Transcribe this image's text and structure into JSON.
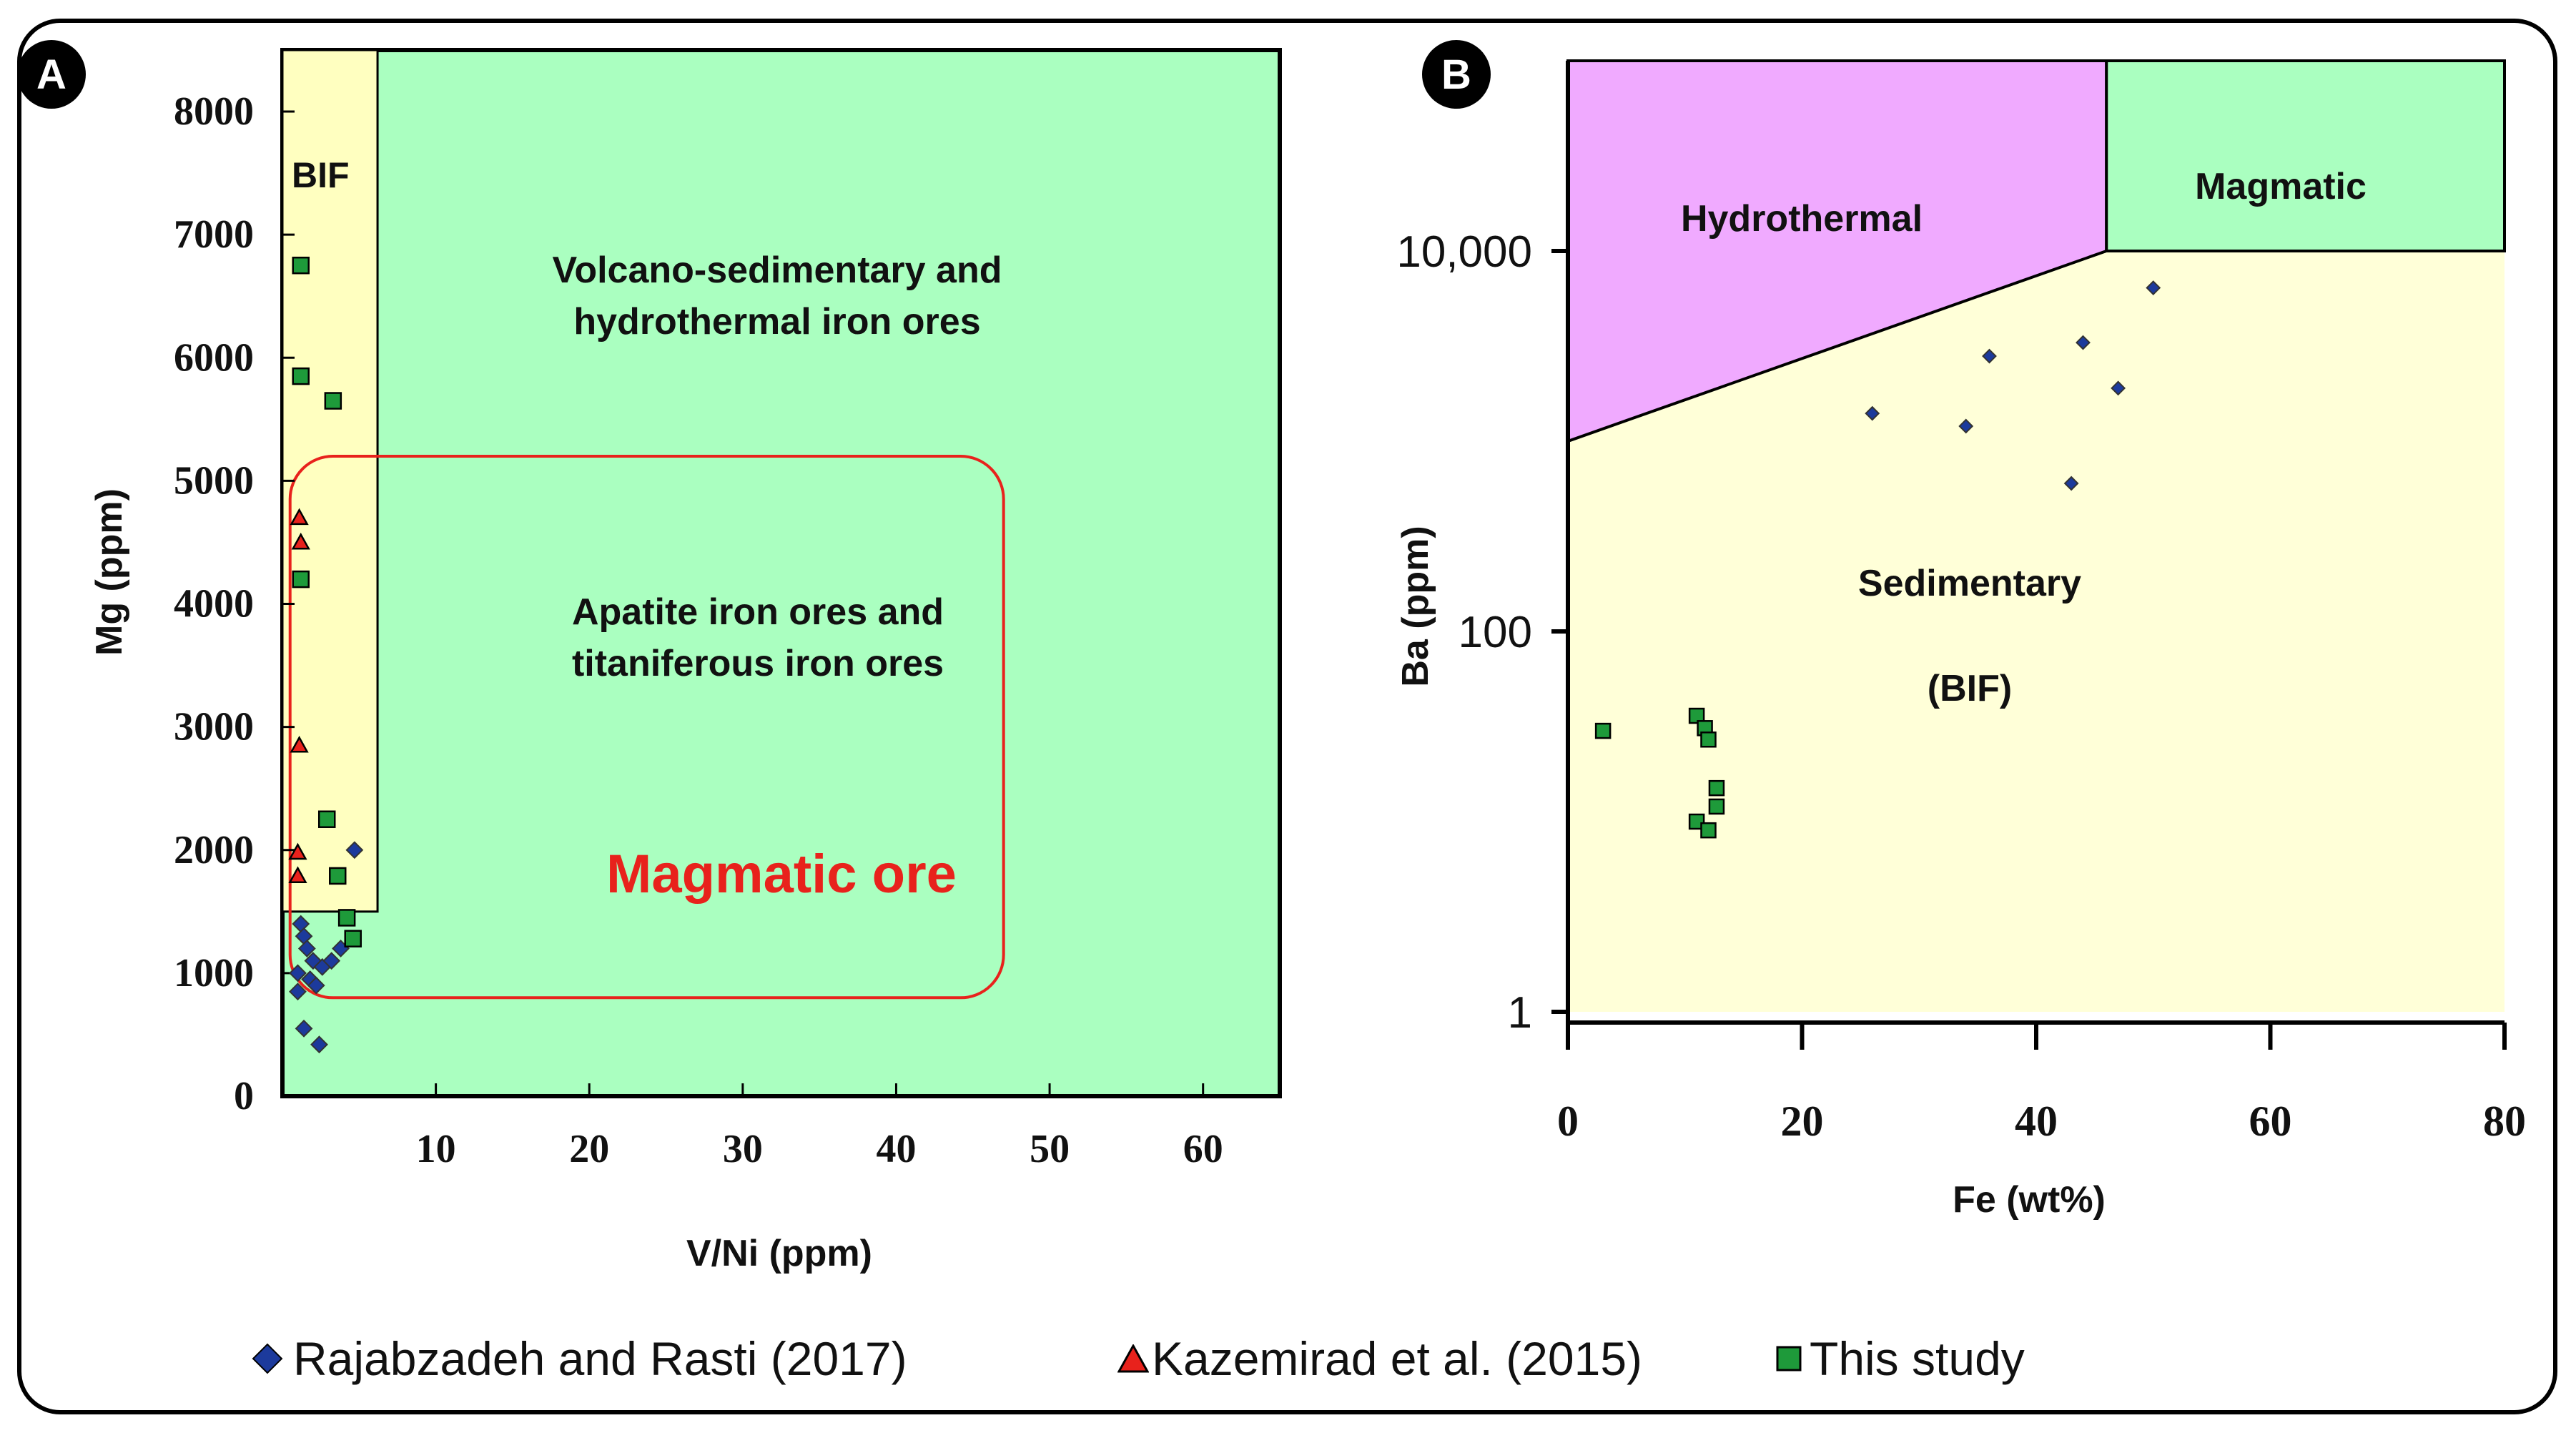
{
  "chart_data": [
    {
      "panel": "A",
      "type": "scatter",
      "xlabel": "V/Ni (ppm)",
      "ylabel": "Mg (ppm)",
      "xlim": [
        0,
        65
      ],
      "ylim": [
        0,
        8500
      ],
      "xticks": [
        10,
        20,
        30,
        40,
        50,
        60
      ],
      "yticks": [
        0,
        1000,
        2000,
        3000,
        4000,
        5000,
        6000,
        7000,
        8000
      ],
      "regions": [
        {
          "label": "BIF",
          "x": [
            0,
            6.2
          ],
          "y": [
            1500,
            8500
          ],
          "color": "#ffffc0"
        },
        {
          "label": "Volcano-sedimentary and hydrothermal iron ores",
          "color": "#aaffc0"
        },
        {
          "label": "Apatite iron ores and titaniferous iron ores",
          "x": [
            0.5,
            47
          ],
          "y": [
            800,
            5200
          ],
          "color": "#aaffc0"
        }
      ],
      "annotation": "Magmatic ore",
      "series": [
        {
          "name": "Rajabzadeh and Rasti (2017)",
          "marker": "diamond",
          "color": "#1c3a9c",
          "points": [
            [
              1.2,
              1400
            ],
            [
              1.4,
              1300
            ],
            [
              1.6,
              1200
            ],
            [
              2.0,
              1100
            ],
            [
              2.6,
              1050
            ],
            [
              3.2,
              1100
            ],
            [
              3.8,
              1200
            ],
            [
              1.0,
              1000
            ],
            [
              1.8,
              950
            ],
            [
              2.2,
              900
            ],
            [
              1.0,
              850
            ],
            [
              1.4,
              550
            ],
            [
              2.4,
              420
            ],
            [
              4.7,
              2000
            ]
          ]
        },
        {
          "name": "Kazemirad et al. (2015)",
          "marker": "triangle",
          "color": "#e8221c",
          "points": [
            [
              1.1,
              4700
            ],
            [
              1.2,
              4500
            ],
            [
              1.1,
              2850
            ],
            [
              1.0,
              1980
            ],
            [
              1.0,
              1790
            ]
          ]
        },
        {
          "name": "This study",
          "marker": "square",
          "color": "#1e9a3a",
          "points": [
            [
              1.2,
              6750
            ],
            [
              1.2,
              5850
            ],
            [
              3.3,
              5650
            ],
            [
              1.2,
              4200
            ],
            [
              2.9,
              2250
            ],
            [
              3.6,
              1790
            ],
            [
              4.2,
              1450
            ],
            [
              4.6,
              1280
            ]
          ]
        }
      ]
    },
    {
      "panel": "B",
      "type": "scatter",
      "xlabel": "Fe (wt%)",
      "ylabel": "Ba (ppm)",
      "xlim": [
        0,
        80
      ],
      "ylim": [
        1,
        100000
      ],
      "yscale": "log",
      "xticks": [
        0,
        20,
        40,
        60,
        80
      ],
      "ytick_labels": [
        "1",
        "100",
        "10,000"
      ],
      "regions": [
        {
          "label": "Hydrothermal",
          "color": "#f0aaff"
        },
        {
          "label": "Magmatic",
          "color": "#aaffc0"
        },
        {
          "label": "Sedimentary",
          "label2": "(BIF)",
          "color": "#ffffd8"
        }
      ],
      "series": [
        {
          "name": "Rajabzadeh and Rasti (2017)",
          "marker": "diamond",
          "color": "#1c3a9c",
          "points": [
            [
              26,
              1400
            ],
            [
              34,
              1200
            ],
            [
              36,
              2800
            ],
            [
              43,
              600
            ],
            [
              44,
              3300
            ],
            [
              47,
              1900
            ],
            [
              50,
              6400
            ]
          ]
        },
        {
          "name": "This study",
          "marker": "square",
          "color": "#1e9a3a",
          "points": [
            [
              3,
              30
            ],
            [
              11,
              36
            ],
            [
              11.7,
              31
            ],
            [
              12,
              27
            ],
            [
              12.7,
              15
            ],
            [
              12.7,
              12
            ],
            [
              11,
              10
            ],
            [
              12,
              9
            ]
          ]
        }
      ]
    }
  ],
  "legend": [
    {
      "label": "Rajabzadeh and Rasti (2017)",
      "marker": "diamond",
      "color": "#1c3a9c"
    },
    {
      "label": "Kazemirad et al. (2015)",
      "marker": "triangle",
      "color": "#e8221c"
    },
    {
      "label": "This study",
      "marker": "square",
      "color": "#1e9a3a"
    }
  ]
}
